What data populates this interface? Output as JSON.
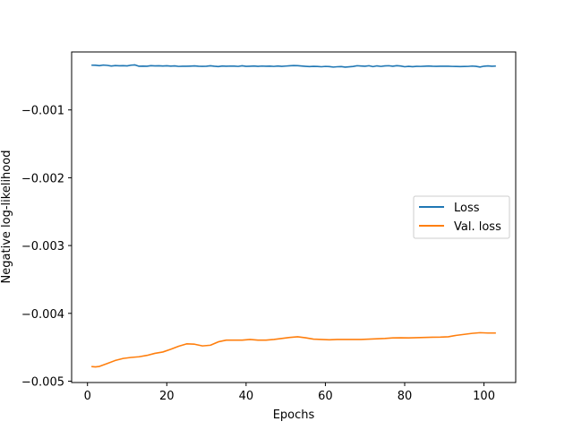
{
  "chart_data": {
    "type": "line",
    "xlabel": "Epochs",
    "ylabel": "Negative log-likelihood",
    "xlim": [
      -4,
      108
    ],
    "ylim": [
      -0.00502,
      -0.000145
    ],
    "xticks": [
      0,
      20,
      40,
      60,
      80,
      100
    ],
    "yticks": [
      -0.005,
      -0.004,
      -0.003,
      -0.002,
      -0.001
    ],
    "ytick_labels": [
      "−0.005",
      "−0.004",
      "−0.003",
      "−0.002",
      "−0.001"
    ],
    "xtick_labels": [
      "0",
      "20",
      "40",
      "60",
      "80",
      "100"
    ],
    "grid": false,
    "legend_position": "center-right",
    "series": [
      {
        "name": "Loss",
        "color": "#1f77b4",
        "x": [
          1,
          2,
          3,
          4,
          5,
          6,
          7,
          8,
          9,
          10,
          11,
          12,
          13,
          14,
          15,
          16,
          17,
          18,
          19,
          20,
          21,
          22,
          23,
          24,
          25,
          26,
          27,
          28,
          29,
          30,
          31,
          32,
          33,
          34,
          35,
          36,
          37,
          38,
          39,
          40,
          41,
          42,
          43,
          44,
          45,
          46,
          47,
          48,
          49,
          50,
          51,
          52,
          53,
          54,
          55,
          56,
          57,
          58,
          59,
          60,
          61,
          62,
          63,
          64,
          65,
          66,
          67,
          68,
          69,
          70,
          71,
          72,
          73,
          74,
          75,
          76,
          77,
          78,
          79,
          80,
          81,
          82,
          83,
          84,
          85,
          86,
          87,
          88,
          89,
          90,
          91,
          92,
          93,
          94,
          95,
          96,
          97,
          98,
          99,
          100,
          101,
          102,
          103
        ],
        "y": [
          -0.00034,
          -0.000341,
          -0.000347,
          -0.000338,
          -0.000343,
          -0.000352,
          -0.000346,
          -0.000349,
          -0.000347,
          -0.000351,
          -0.00034,
          -0.000336,
          -0.000356,
          -0.000354,
          -0.000355,
          -0.000347,
          -0.000351,
          -0.000349,
          -0.000352,
          -0.000349,
          -0.000354,
          -0.000351,
          -0.000358,
          -0.000355,
          -0.000356,
          -0.000354,
          -0.000351,
          -0.000355,
          -0.000357,
          -0.000356,
          -0.000349,
          -0.000356,
          -0.000361,
          -0.000352,
          -0.000356,
          -0.000353,
          -0.000354,
          -0.000358,
          -0.000349,
          -0.000357,
          -0.000355,
          -0.000352,
          -0.000357,
          -0.000353,
          -0.000355,
          -0.000354,
          -0.000358,
          -0.000352,
          -0.000357,
          -0.000353,
          -0.000349,
          -0.000346,
          -0.000347,
          -0.000352,
          -0.000357,
          -0.000361,
          -0.000357,
          -0.000359,
          -0.000363,
          -0.000358,
          -0.00036,
          -0.000368,
          -0.000363,
          -0.000361,
          -0.000369,
          -0.000364,
          -0.000359,
          -0.000348,
          -0.000352,
          -0.000355,
          -0.000348,
          -0.000361,
          -0.00035,
          -0.000358,
          -0.000351,
          -0.000348,
          -0.000355,
          -0.000347,
          -0.000352,
          -0.000363,
          -0.000357,
          -0.000362,
          -0.000357,
          -0.000358,
          -0.000355,
          -0.000352,
          -0.000356,
          -0.000357,
          -0.000356,
          -0.000355,
          -0.000355,
          -0.000358,
          -0.000359,
          -0.000361,
          -0.000359,
          -0.000358,
          -0.000353,
          -0.000357,
          -0.000367,
          -0.000355,
          -0.000351,
          -0.000356,
          -0.000353
        ]
      },
      {
        "name": "Val. loss",
        "color": "#ff7f0e",
        "x": [
          1,
          2,
          3,
          5,
          7,
          9,
          11,
          13,
          15,
          17,
          19,
          21,
          23,
          25,
          27,
          29,
          31,
          33,
          35,
          37,
          39,
          41,
          43,
          45,
          47,
          49,
          51,
          53,
          55,
          57,
          59,
          61,
          63,
          65,
          67,
          69,
          71,
          73,
          75,
          77,
          79,
          81,
          83,
          85,
          87,
          89,
          91,
          93,
          95,
          97,
          99,
          101,
          103
        ],
        "y": [
          -0.004785,
          -0.00479,
          -0.004783,
          -0.00474,
          -0.004695,
          -0.004665,
          -0.00465,
          -0.00464,
          -0.00462,
          -0.00459,
          -0.00457,
          -0.00453,
          -0.004485,
          -0.00445,
          -0.004455,
          -0.00448,
          -0.00447,
          -0.00442,
          -0.004395,
          -0.004395,
          -0.004395,
          -0.004385,
          -0.004395,
          -0.004395,
          -0.004385,
          -0.00437,
          -0.004355,
          -0.004345,
          -0.00436,
          -0.00438,
          -0.004385,
          -0.00439,
          -0.004385,
          -0.004385,
          -0.004385,
          -0.004385,
          -0.00438,
          -0.004375,
          -0.00437,
          -0.004362,
          -0.00436,
          -0.004362,
          -0.004358,
          -0.004355,
          -0.004352,
          -0.00435,
          -0.004345,
          -0.004325,
          -0.00431,
          -0.004295,
          -0.004285,
          -0.00429,
          -0.00429
        ]
      }
    ]
  }
}
